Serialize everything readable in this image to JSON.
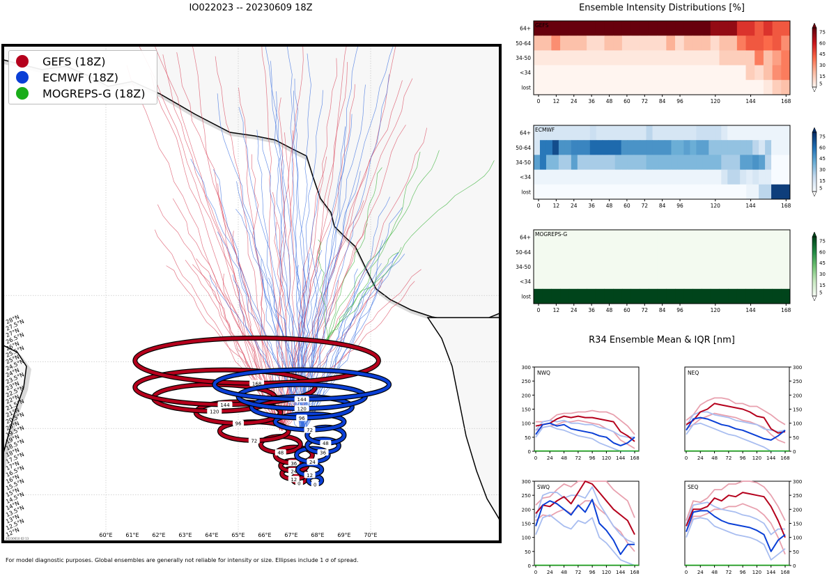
{
  "header": {
    "title": "IO022023 -- 20230609 18Z",
    "intensity_title": "Ensemble Intensity Distributions [%]",
    "r34_title": "R34 Ensemble Mean & IQR [nm]",
    "footnote": "For model diagnostic purposes. Global ensembles are generally not reliable for intensity or size. Ellipses include 1 σ of spread.",
    "timestamp": "20230610 02:13"
  },
  "legend": [
    {
      "label": "GEFS (18Z)",
      "color": "#b5001c"
    },
    {
      "label": "ECMWF (18Z)",
      "color": "#0a3fd6"
    },
    {
      "label": "MOGREPS-G (18Z)",
      "color": "#1aad1a"
    }
  ],
  "map": {
    "lon_labels": [
      "60°E",
      "61°E",
      "62°E",
      "63°E",
      "64°E",
      "65°E",
      "66°E",
      "67°E",
      "68°E",
      "69°E",
      "70°E"
    ],
    "lat_labels": [
      "12°N",
      "12.5°N",
      "13°N",
      "13.5°N",
      "14°N",
      "14.5°N",
      "15°N",
      "15.5°N",
      "16°N",
      "16.5°N",
      "17°N",
      "17.5°N",
      "18°N",
      "18.5°N",
      "19°N",
      "19.5°N",
      "20°N",
      "20.5°N",
      "21°N",
      "21.5°N",
      "22°N",
      "22.5°N",
      "23°N",
      "23.5°N",
      "24°N",
      "24.5°N",
      "25°N",
      "25.5°N",
      "26°N",
      "26.5°N",
      "27°N",
      "27.5°N",
      "28°N"
    ],
    "gefs_ellipses": [
      {
        "hour": "0",
        "cx": 67.3,
        "cy": 16.2,
        "rx": 0.25,
        "ry": 0.3
      },
      {
        "hour": "12",
        "cx": 67.1,
        "cy": 16.6,
        "rx": 0.45,
        "ry": 0.4
      },
      {
        "hour": "24",
        "cx": 67.1,
        "cy": 17.2,
        "rx": 0.5,
        "ry": 0.4
      },
      {
        "hour": "36",
        "cx": 67.1,
        "cy": 18.0,
        "rx": 0.7,
        "ry": 0.6
      },
      {
        "hour": "48",
        "cx": 66.6,
        "cy": 18.8,
        "rx": 0.75,
        "ry": 0.6
      },
      {
        "hour": "72",
        "cx": 65.6,
        "cy": 19.8,
        "rx": 1.3,
        "ry": 0.7
      },
      {
        "hour": "96",
        "cx": 65.0,
        "cy": 21.2,
        "rx": 1.6,
        "ry": 0.8
      },
      {
        "hour": "120",
        "cx": 64.1,
        "cy": 22.3,
        "rx": 2.3,
        "ry": 1.0
      },
      {
        "hour": "144",
        "cx": 64.5,
        "cy": 23.1,
        "rx": 3.4,
        "ry": 1.3
      },
      {
        "hour": "168",
        "cx": 65.7,
        "cy": 25.1,
        "rx": 4.6,
        "ry": 1.7
      }
    ],
    "ecmwf_ellipses": [
      {
        "hour": "0",
        "cx": 67.9,
        "cy": 16.1,
        "rx": 0.25,
        "ry": 0.3
      },
      {
        "hour": "12",
        "cx": 67.7,
        "cy": 16.9,
        "rx": 0.45,
        "ry": 0.4
      },
      {
        "hour": "24",
        "cx": 67.8,
        "cy": 18.0,
        "rx": 0.6,
        "ry": 0.5
      },
      {
        "hour": "36",
        "cx": 68.2,
        "cy": 18.7,
        "rx": 0.6,
        "ry": 0.5
      },
      {
        "hour": "48",
        "cx": 68.3,
        "cy": 19.5,
        "rx": 0.7,
        "ry": 0.6
      },
      {
        "hour": "72",
        "cx": 67.7,
        "cy": 20.5,
        "rx": 1.3,
        "ry": 0.6
      },
      {
        "hour": "96",
        "cx": 67.4,
        "cy": 21.6,
        "rx": 1.9,
        "ry": 0.8
      },
      {
        "hour": "120",
        "cx": 67.4,
        "cy": 22.4,
        "rx": 2.4,
        "ry": 0.9
      },
      {
        "hour": "144",
        "cx": 67.4,
        "cy": 23.3,
        "rx": 3.3,
        "ry": 1.1
      }
    ]
  },
  "intensity": {
    "rows": [
      "64+",
      "50-64",
      "34-50",
      "<34",
      "lost"
    ],
    "xticks": [
      "0",
      "12",
      "24",
      "36",
      "48",
      "60",
      "72",
      "84",
      "96",
      "120",
      "144",
      "168"
    ],
    "panels": [
      {
        "name": "GEFS",
        "cmap": "red",
        "matrix": [
          [
            90,
            90,
            90,
            90,
            90,
            90,
            90,
            90,
            90,
            90,
            90,
            90,
            90,
            90,
            90,
            90,
            90,
            90,
            90,
            90,
            80,
            80,
            80,
            60,
            60,
            50,
            60,
            50,
            50
          ],
          [
            20,
            20,
            35,
            20,
            20,
            20,
            10,
            10,
            20,
            20,
            10,
            10,
            10,
            10,
            10,
            25,
            10,
            20,
            20,
            20,
            10,
            20,
            20,
            40,
            50,
            50,
            45,
            50,
            35
          ],
          [
            5,
            5,
            5,
            5,
            5,
            5,
            5,
            5,
            5,
            5,
            5,
            5,
            5,
            5,
            5,
            5,
            5,
            5,
            5,
            5,
            5,
            15,
            15,
            15,
            15,
            40,
            20,
            30,
            40
          ],
          [
            0,
            0,
            0,
            0,
            0,
            0,
            0,
            0,
            0,
            0,
            0,
            0,
            0,
            0,
            0,
            0,
            0,
            0,
            0,
            0,
            0,
            0,
            0,
            0,
            15,
            10,
            20,
            35,
            40
          ],
          [
            0,
            0,
            0,
            0,
            0,
            0,
            0,
            0,
            0,
            0,
            0,
            0,
            0,
            0,
            0,
            0,
            0,
            0,
            0,
            0,
            0,
            0,
            0,
            0,
            0,
            0,
            5,
            15,
            20
          ]
        ]
      },
      {
        "name": "ECMWF",
        "cmap": "blue",
        "matrix": [
          [
            12,
            15,
            15,
            15,
            15,
            15,
            15,
            15,
            15,
            20,
            15,
            15,
            15,
            15,
            15,
            15,
            15,
            15,
            25,
            15,
            15,
            15,
            15,
            15,
            15,
            15,
            20,
            20,
            20,
            20,
            12,
            5,
            5,
            5,
            5,
            5,
            5,
            5,
            5,
            5,
            5
          ],
          [
            15,
            65,
            65,
            80,
            55,
            55,
            60,
            60,
            60,
            70,
            70,
            70,
            70,
            70,
            55,
            55,
            55,
            55,
            55,
            55,
            55,
            55,
            45,
            45,
            50,
            45,
            50,
            50,
            35,
            35,
            35,
            35,
            35,
            35,
            35,
            25,
            15,
            30,
            5,
            5,
            5
          ],
          [
            50,
            65,
            40,
            40,
            30,
            30,
            50,
            30,
            30,
            30,
            30,
            30,
            30,
            35,
            35,
            35,
            35,
            35,
            40,
            40,
            40,
            40,
            40,
            40,
            40,
            40,
            40,
            40,
            40,
            40,
            30,
            30,
            30,
            50,
            50,
            55,
            50,
            25,
            0,
            0,
            0
          ],
          [
            5,
            5,
            5,
            5,
            5,
            5,
            5,
            5,
            5,
            5,
            5,
            5,
            5,
            5,
            5,
            5,
            5,
            5,
            5,
            5,
            5,
            5,
            5,
            5,
            5,
            5,
            5,
            5,
            5,
            5,
            15,
            25,
            25,
            15,
            10,
            15,
            10,
            10,
            0,
            0,
            0
          ],
          [
            0,
            0,
            0,
            0,
            0,
            0,
            0,
            0,
            0,
            0,
            0,
            0,
            0,
            0,
            0,
            0,
            0,
            0,
            0,
            0,
            0,
            0,
            0,
            0,
            0,
            0,
            0,
            0,
            0,
            0,
            0,
            0,
            0,
            0,
            5,
            5,
            25,
            25,
            85,
            85,
            85
          ]
        ]
      },
      {
        "name": "MOGREPS-G",
        "cmap": "green",
        "matrix": [
          [
            2,
            2,
            2,
            2,
            2,
            2,
            2,
            2,
            2,
            2,
            2,
            2,
            2,
            2,
            2,
            2,
            2,
            2,
            2,
            2,
            2,
            2,
            2,
            2,
            2,
            2,
            2,
            2,
            2
          ],
          [
            2,
            2,
            2,
            2,
            2,
            2,
            2,
            2,
            2,
            2,
            2,
            2,
            2,
            2,
            2,
            2,
            2,
            2,
            2,
            2,
            2,
            2,
            2,
            2,
            2,
            2,
            2,
            2,
            2
          ],
          [
            2,
            2,
            2,
            2,
            2,
            2,
            2,
            2,
            2,
            2,
            2,
            2,
            2,
            2,
            2,
            2,
            2,
            2,
            2,
            2,
            2,
            2,
            2,
            2,
            2,
            2,
            2,
            2,
            2
          ],
          [
            2,
            2,
            2,
            2,
            2,
            2,
            2,
            2,
            2,
            2,
            2,
            2,
            2,
            2,
            2,
            2,
            2,
            2,
            2,
            2,
            2,
            2,
            2,
            2,
            2,
            2,
            2,
            2,
            2
          ],
          [
            100,
            100,
            100,
            100,
            100,
            100,
            100,
            100,
            100,
            100,
            100,
            100,
            100,
            100,
            100,
            100,
            100,
            100,
            100,
            100,
            100,
            100,
            100,
            100,
            100,
            100,
            100,
            100,
            100
          ]
        ]
      }
    ],
    "colorbar_ticks": [
      "5",
      "15",
      "30",
      "45",
      "60",
      "75"
    ]
  },
  "r34": {
    "xticks": [
      "0",
      "24",
      "48",
      "72",
      "96",
      "120",
      "144",
      "168"
    ],
    "yticks": [
      "0",
      "50",
      "100",
      "150",
      "200",
      "250",
      "300"
    ],
    "hours": [
      0,
      12,
      24,
      36,
      48,
      60,
      72,
      84,
      96,
      108,
      120,
      132,
      144,
      156,
      168
    ],
    "quadrants": [
      {
        "name": "NWQ",
        "gefs_mean": [
          90,
          95,
          100,
          115,
          125,
          120,
          125,
          120,
          120,
          115,
          110,
          105,
          70,
          55,
          35
        ],
        "gefs_q1": [
          75,
          85,
          90,
          95,
          105,
          105,
          110,
          105,
          100,
          95,
          80,
          70,
          40,
          25,
          10
        ],
        "gefs_q3": [
          105,
          105,
          110,
          130,
          135,
          135,
          140,
          140,
          145,
          140,
          140,
          130,
          110,
          90,
          60
        ],
        "ecmwf_mean": [
          60,
          95,
          100,
          90,
          95,
          80,
          75,
          70,
          65,
          55,
          50,
          30,
          20,
          30,
          50
        ],
        "ecmwf_q1": [
          50,
          85,
          90,
          80,
          75,
          65,
          55,
          50,
          45,
          30,
          20,
          10,
          0,
          0,
          0
        ],
        "ecmwf_q3": [
          75,
          105,
          110,
          105,
          110,
          100,
          100,
          95,
          95,
          85,
          80,
          70,
          55,
          50,
          50
        ]
      },
      {
        "name": "NEQ",
        "gefs_mean": [
          95,
          110,
          140,
          150,
          170,
          165,
          160,
          155,
          150,
          140,
          125,
          120,
          80,
          65,
          70
        ],
        "gefs_q1": [
          80,
          95,
          115,
          125,
          135,
          130,
          125,
          120,
          110,
          105,
          95,
          85,
          60,
          40,
          30
        ],
        "gefs_q3": [
          110,
          130,
          165,
          180,
          190,
          190,
          185,
          170,
          170,
          160,
          160,
          145,
          130,
          110,
          95
        ],
        "ecmwf_mean": [
          75,
          115,
          120,
          115,
          105,
          95,
          90,
          80,
          75,
          65,
          55,
          45,
          40,
          55,
          75
        ],
        "ecmwf_q1": [
          60,
          95,
          100,
          90,
          80,
          70,
          60,
          55,
          45,
          35,
          25,
          15,
          0,
          0,
          0
        ],
        "ecmwf_q3": [
          90,
          130,
          140,
          140,
          130,
          125,
          120,
          110,
          105,
          100,
          95,
          80,
          75,
          70,
          75
        ]
      },
      {
        "name": "SWQ",
        "gefs_mean": [
          185,
          215,
          210,
          230,
          245,
          220,
          260,
          300,
          290,
          260,
          230,
          200,
          180,
          160,
          110
        ],
        "gefs_q1": [
          160,
          180,
          175,
          190,
          200,
          185,
          210,
          230,
          230,
          200,
          180,
          140,
          120,
          80,
          50
        ],
        "gefs_q3": [
          215,
          240,
          245,
          270,
          290,
          280,
          300,
          300,
          300,
          300,
          300,
          270,
          250,
          230,
          170
        ],
        "ecmwf_mean": [
          140,
          215,
          230,
          220,
          200,
          180,
          215,
          190,
          235,
          150,
          125,
          90,
          40,
          75,
          75
        ],
        "ecmwf_q1": [
          110,
          170,
          180,
          160,
          140,
          130,
          160,
          150,
          170,
          100,
          80,
          50,
          20,
          10,
          0
        ],
        "ecmwf_q3": [
          170,
          250,
          260,
          260,
          240,
          250,
          250,
          240,
          280,
          220,
          180,
          140,
          110,
          90,
          80
        ]
      },
      {
        "name": "SEQ",
        "gefs_mean": [
          140,
          200,
          200,
          210,
          240,
          230,
          250,
          245,
          260,
          255,
          250,
          245,
          210,
          160,
          100
        ],
        "gefs_q1": [
          120,
          175,
          175,
          185,
          200,
          200,
          210,
          210,
          220,
          210,
          200,
          180,
          150,
          100,
          40
        ],
        "gefs_q3": [
          160,
          230,
          225,
          240,
          270,
          270,
          290,
          290,
          300,
          300,
          295,
          280,
          250,
          210,
          160
        ],
        "ecmwf_mean": [
          120,
          190,
          195,
          195,
          175,
          160,
          150,
          145,
          140,
          135,
          125,
          110,
          50,
          90,
          110
        ],
        "ecmwf_q1": [
          100,
          165,
          170,
          165,
          140,
          130,
          120,
          110,
          105,
          100,
          90,
          75,
          20,
          40,
          60
        ],
        "ecmwf_q3": [
          145,
          215,
          220,
          225,
          210,
          200,
          195,
          190,
          180,
          175,
          165,
          150,
          110,
          130,
          130
        ]
      }
    ]
  }
}
